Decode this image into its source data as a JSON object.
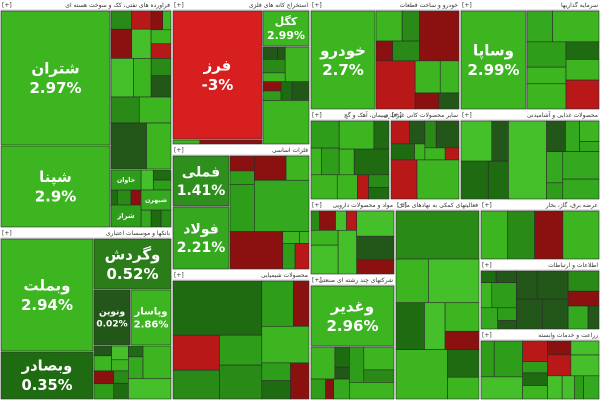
{
  "chart_data": {
    "type": "treemap",
    "expand_marker": "[+]",
    "sectors": [
      {
        "name": "فراورده های نفتی، کک و سوخت هسته ای",
        "tiles": [
          {
            "label": "شتران",
            "value": 2.97,
            "value_label": "2.97%",
            "color": "#3cb521"
          },
          {
            "label": "شپنا",
            "value": 2.9,
            "value_label": "2.9%",
            "color": "#3cb521"
          },
          {
            "label": "خاوان",
            "color": "#2e9e1a"
          },
          {
            "label": "شبهرن",
            "color": "#34a81e"
          },
          {
            "label": "شراز",
            "color": "#2e9e1a"
          }
        ]
      },
      {
        "name": "بانکها و موسسات اعتباری",
        "tiles": [
          {
            "label": "وبملت",
            "value": 2.94,
            "value_label": "2.94%",
            "color": "#3cb521"
          },
          {
            "label": "وبصادر",
            "value": 0.35,
            "value_label": "0.35%",
            "color": "#1f6b12"
          },
          {
            "label": "وگردش",
            "value": 0.52,
            "value_label": "0.52%",
            "color": "#2a7d18"
          },
          {
            "label": "ونوین",
            "value": 0.02,
            "value_label": "0.02%",
            "color": "#23571a"
          },
          {
            "label": "وپاسار",
            "value": 2.86,
            "value_label": "2.86%",
            "color": "#3cb521"
          }
        ]
      },
      {
        "name": "استخراج کانه های فلزی",
        "tiles": [
          {
            "label": "فرز",
            "value": -3,
            "value_label": "-3%",
            "color": "#d81f1f"
          },
          {
            "label": "کگل",
            "value": 2.99,
            "value_label": "2.99%",
            "color": "#3cb521"
          }
        ]
      },
      {
        "name": "فلزات اساسی",
        "tiles": [
          {
            "label": "فملی",
            "value": 1.41,
            "value_label": "1.41%",
            "color": "#2f8f1c"
          },
          {
            "label": "فولاد",
            "value": 2.21,
            "value_label": "2.21%",
            "color": "#36a81f"
          }
        ]
      },
      {
        "name": "محصولات شیمیایی",
        "tiles": []
      },
      {
        "name": "خودرو و ساخت قطعات",
        "tiles": [
          {
            "label": "خودرو",
            "value": 2.7,
            "value_label": "2.7%",
            "color": "#3cb521"
          }
        ]
      },
      {
        "name": "سرمایه گذاریها",
        "tiles": [
          {
            "label": "وساپا",
            "value": 2.99,
            "value_label": "2.99%",
            "color": "#3cb521"
          }
        ]
      },
      {
        "name": "سیمان، آهک و گچ",
        "tiles": []
      },
      {
        "name": "سایر محصولات کانی غیرفلزی",
        "tiles": []
      },
      {
        "name": "محصولات غذایی و آشامیدنی",
        "tiles": []
      },
      {
        "name": "مواد و محصولات دارویی",
        "tiles": []
      },
      {
        "name": "شرکتهای چند رشته ای صنعتی",
        "tiles": [
          {
            "label": "وغدیر",
            "value": 2.96,
            "value_label": "2.96%",
            "color": "#3cb521"
          }
        ]
      },
      {
        "name": "فعالیتهای کمکی به نهادهای مالی",
        "tiles": []
      },
      {
        "name": "عرضه برق، گاز، بخار",
        "tiles": []
      },
      {
        "name": "اطلاعات و ارتباطات",
        "tiles": []
      },
      {
        "name": "زراعت و خدمات وابسته",
        "tiles": []
      }
    ]
  }
}
